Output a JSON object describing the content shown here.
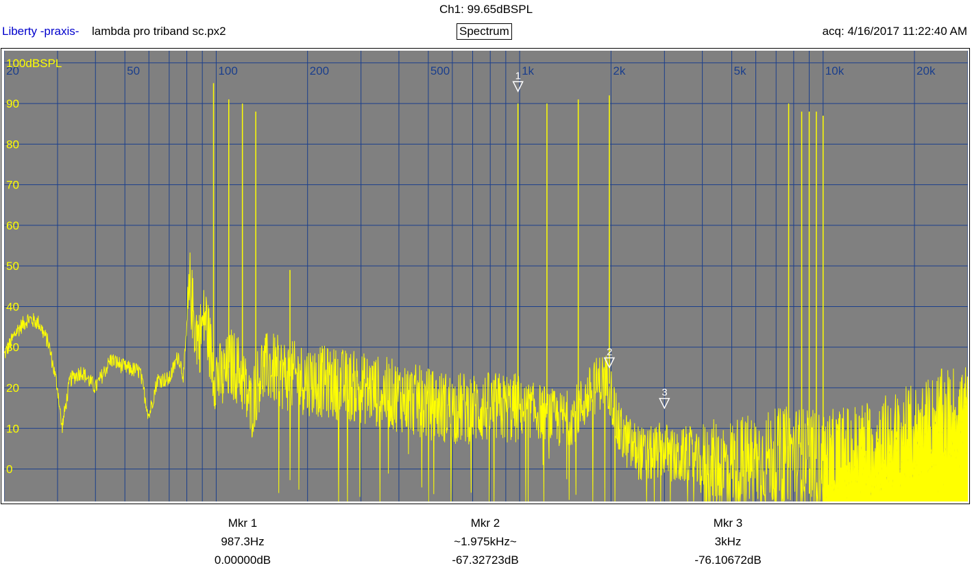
{
  "header": {
    "channel_readout": "Ch1: 99.65dBSPL",
    "app_name": "Liberty -praxis-",
    "file_name": "lambda pro triband sc.px2",
    "view_mode": "Spectrum",
    "acquisition": "acq: 4/16/2017 11:22:40 AM"
  },
  "colors": {
    "plot_background": "#808080",
    "grid": "#1a3e8c",
    "trace": "#ffff00",
    "axis_label_x": "#1a3e8c",
    "axis_label_y": "#ffff00",
    "marker": "#ffffff"
  },
  "chart_data": {
    "type": "line",
    "title": "Spectrum",
    "xscale": "log",
    "xlim": [
      20,
      30000
    ],
    "ylim": [
      -8,
      103
    ],
    "ylabel_unit": "dBSPL",
    "grid": true,
    "x_tick_labels": [
      {
        "value": 20,
        "label": "20"
      },
      {
        "value": 50,
        "label": "50"
      },
      {
        "value": 100,
        "label": "100"
      },
      {
        "value": 200,
        "label": "200"
      },
      {
        "value": 500,
        "label": "500"
      },
      {
        "value": 1000,
        "label": "1k"
      },
      {
        "value": 2000,
        "label": "2k"
      },
      {
        "value": 5000,
        "label": "5k"
      },
      {
        "value": 10000,
        "label": "10k"
      },
      {
        "value": 20000,
        "label": "20k"
      }
    ],
    "y_tick_labels": [
      {
        "value": 100,
        "label": "100dBSPL"
      },
      {
        "value": 90,
        "label": "90"
      },
      {
        "value": 80,
        "label": "80"
      },
      {
        "value": 70,
        "label": "70"
      },
      {
        "value": 60,
        "label": "60"
      },
      {
        "value": 50,
        "label": "50"
      },
      {
        "value": 40,
        "label": "40"
      },
      {
        "value": 30,
        "label": "30"
      },
      {
        "value": 20,
        "label": "20"
      },
      {
        "value": 10,
        "label": "10"
      },
      {
        "value": 0,
        "label": "0"
      }
    ],
    "floor_points": [
      [
        20,
        28
      ],
      [
        22,
        34
      ],
      [
        24,
        37
      ],
      [
        26,
        36
      ],
      [
        28,
        31
      ],
      [
        30,
        20
      ],
      [
        31,
        10
      ],
      [
        33,
        22
      ],
      [
        36,
        24
      ],
      [
        40,
        20
      ],
      [
        45,
        27
      ],
      [
        50,
        25
      ],
      [
        56,
        24
      ],
      [
        60,
        13
      ],
      [
        64,
        22
      ],
      [
        70,
        22
      ],
      [
        75,
        28
      ],
      [
        78,
        23
      ],
      [
        82,
        45
      ],
      [
        85,
        35
      ],
      [
        88,
        32
      ],
      [
        92,
        38
      ],
      [
        98,
        24
      ],
      [
        105,
        22
      ],
      [
        112,
        26
      ],
      [
        120,
        24
      ],
      [
        130,
        15
      ],
      [
        140,
        24
      ],
      [
        150,
        25
      ],
      [
        170,
        23
      ],
      [
        200,
        22
      ],
      [
        250,
        21
      ],
      [
        300,
        20
      ],
      [
        400,
        18
      ],
      [
        500,
        16
      ],
      [
        600,
        15
      ],
      [
        700,
        15
      ],
      [
        800,
        15
      ],
      [
        950,
        15
      ],
      [
        1200,
        14
      ],
      [
        1350,
        12
      ],
      [
        1500,
        13
      ],
      [
        1650,
        17
      ],
      [
        1800,
        21
      ],
      [
        1900,
        22
      ],
      [
        1975,
        21
      ],
      [
        2100,
        10
      ],
      [
        2300,
        6
      ],
      [
        2600,
        3
      ],
      [
        3000,
        5
      ],
      [
        3300,
        2
      ],
      [
        3600,
        4
      ],
      [
        4000,
        0
      ],
      [
        5000,
        1
      ],
      [
        6000,
        2
      ],
      [
        7000,
        3
      ],
      [
        8000,
        4
      ],
      [
        9000,
        3
      ],
      [
        10000,
        2
      ],
      [
        12000,
        4
      ],
      [
        15000,
        6
      ],
      [
        20000,
        9
      ],
      [
        25000,
        13
      ],
      [
        30000,
        15
      ]
    ],
    "peaks": [
      [
        98,
        95
      ],
      [
        110,
        91
      ],
      [
        122,
        90
      ],
      [
        135,
        88
      ],
      [
        175,
        49
      ],
      [
        987.3,
        90
      ],
      [
        1230,
        90
      ],
      [
        1560,
        91
      ],
      [
        1975,
        92
      ],
      [
        7700,
        90
      ],
      [
        8500,
        88
      ],
      [
        9000,
        88
      ],
      [
        9500,
        88
      ],
      [
        10000,
        87
      ]
    ],
    "markers": [
      {
        "id": "1",
        "freq": 987.3,
        "level": 93
      },
      {
        "id": "2",
        "freq": 1975,
        "level": 25
      },
      {
        "id": "3",
        "freq": 3000,
        "level": 15
      }
    ]
  },
  "marker_readouts": [
    {
      "title": "Mkr 1",
      "frequency": "987.3Hz",
      "level": "0.00000dB"
    },
    {
      "title": "Mkr 2",
      "frequency": "~1.975kHz~",
      "level": "-67.32723dB"
    },
    {
      "title": "Mkr 3",
      "frequency": "3kHz",
      "level": "-76.10672dB"
    }
  ]
}
